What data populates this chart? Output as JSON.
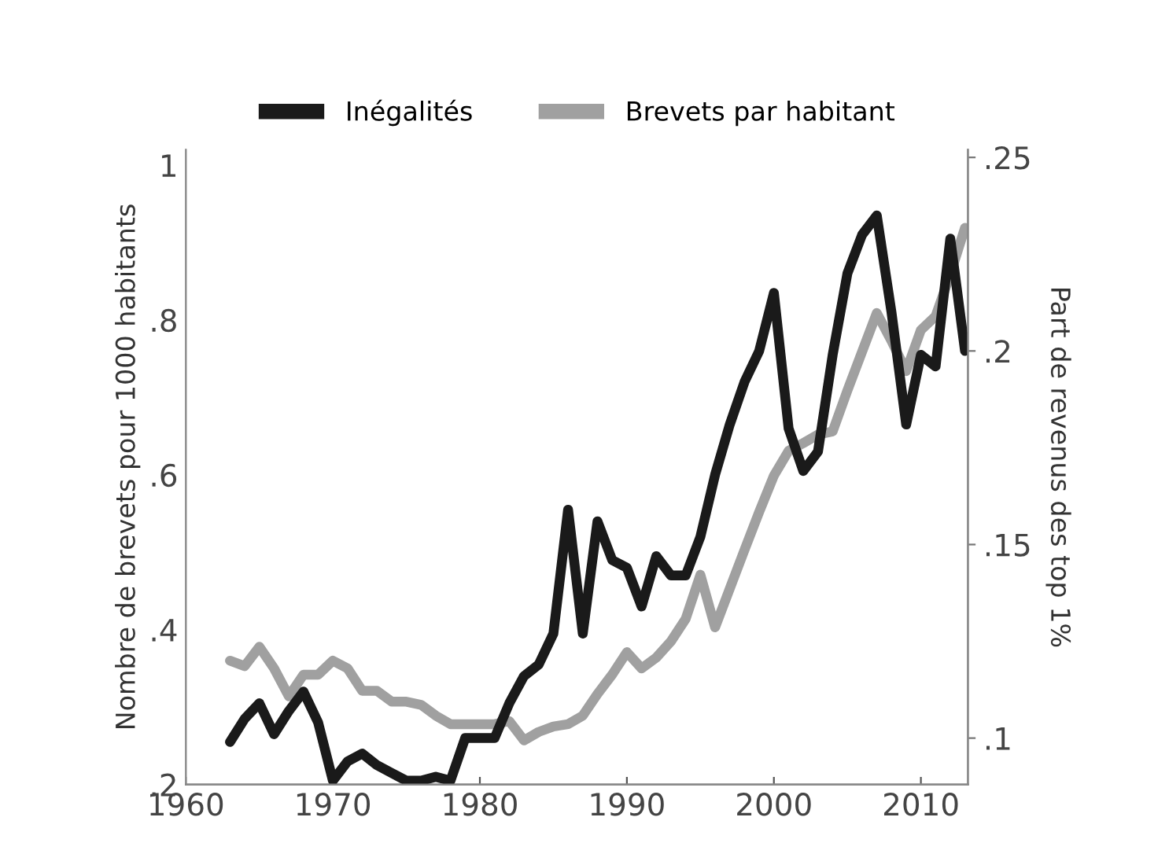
{
  "chart_data": {
    "type": "line",
    "ylabel": "Nombre de brevets pour 1000 habitants",
    "y2label": "Part de revenus des top 1%",
    "x": [
      1963,
      1964,
      1965,
      1966,
      1967,
      1968,
      1969,
      1970,
      1971,
      1972,
      1973,
      1974,
      1975,
      1976,
      1977,
      1978,
      1979,
      1980,
      1981,
      1982,
      1983,
      1984,
      1985,
      1986,
      1987,
      1988,
      1989,
      1990,
      1991,
      1992,
      1993,
      1994,
      1995,
      1996,
      1997,
      1998,
      1999,
      2000,
      2001,
      2002,
      2003,
      2004,
      2005,
      2006,
      2007,
      2008,
      2009,
      2010,
      2011,
      2012,
      2013
    ],
    "series": [
      {
        "name": "Inégalités",
        "color": "#1a1a1a",
        "axis": "y2",
        "values": [
          0.099,
          0.105,
          0.109,
          0.101,
          0.107,
          0.112,
          0.104,
          0.089,
          0.094,
          0.096,
          0.093,
          0.091,
          0.089,
          0.089,
          0.09,
          0.089,
          0.1,
          0.1,
          0.1,
          0.109,
          0.116,
          0.119,
          0.127,
          0.159,
          0.127,
          0.156,
          0.146,
          0.144,
          0.134,
          0.147,
          0.142,
          0.142,
          0.152,
          0.168,
          0.181,
          0.192,
          0.2,
          0.215,
          0.18,
          0.169,
          0.174,
          0.199,
          0.22,
          0.23,
          0.235,
          0.21,
          0.181,
          0.199,
          0.196,
          0.229,
          0.2
        ]
      },
      {
        "name": "Brevets par habitant",
        "color": "#a0a0a0",
        "values": [
          0.36,
          0.353,
          0.378,
          0.35,
          0.314,
          0.342,
          0.342,
          0.36,
          0.35,
          0.321,
          0.321,
          0.307,
          0.307,
          0.303,
          0.289,
          0.278,
          0.278,
          0.278,
          0.278,
          0.282,
          0.257,
          0.268,
          0.275,
          0.278,
          0.289,
          0.317,
          0.342,
          0.371,
          0.35,
          0.364,
          0.385,
          0.414,
          0.471,
          0.403,
          0.453,
          0.503,
          0.552,
          0.599,
          0.631,
          0.641,
          0.652,
          0.656,
          0.709,
          0.759,
          0.809,
          0.773,
          0.734,
          0.787,
          0.805,
          0.859,
          0.919
        ]
      }
    ],
    "xlim": [
      1960,
      2013.2
    ],
    "xticks": [
      1960,
      1970,
      1980,
      1990,
      2000,
      2010
    ],
    "ylim": [
      0.2,
      1.02
    ],
    "yticks": [
      {
        "value": 0.2,
        "label": ".2"
      },
      {
        "value": 0.4,
        "label": ".4"
      },
      {
        "value": 0.6,
        "label": ".6"
      },
      {
        "value": 0.8,
        "label": ".8"
      },
      1
    ],
    "y2lim": [
      0.088,
      0.252
    ],
    "y2ticks": [
      {
        "value": 0.1,
        "label": ".1"
      },
      {
        "value": 0.15,
        "label": ".15"
      },
      {
        "value": 0.2,
        "label": ".2"
      },
      {
        "value": 0.25,
        "label": ".25"
      }
    ],
    "legend": "top",
    "line_style": "solid",
    "marker": "none",
    "grid": false
  }
}
